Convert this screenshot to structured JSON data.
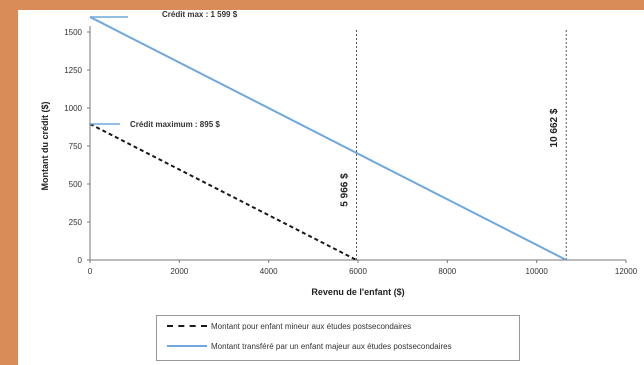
{
  "chart_data": {
    "type": "line",
    "xlabel": "Revenu de l'enfant ($)",
    "ylabel": "Montant du crédit ($)",
    "xlim": [
      0,
      12000
    ],
    "ylim": [
      0,
      1500
    ],
    "xticks": [
      0,
      2000,
      4000,
      6000,
      8000,
      10000,
      12000
    ],
    "yticks": [
      0,
      250,
      500,
      750,
      1000,
      1250,
      1500
    ],
    "series": [
      {
        "name": "Montant pour enfant mineur aux études postsecondaires",
        "x": [
          0,
          5966
        ],
        "y": [
          895,
          0
        ],
        "style": "dashed",
        "color": "#1a1a1a"
      },
      {
        "name": "Montant transféré par un enfant majeur aux études postsecondaires",
        "x": [
          0,
          10662
        ],
        "y": [
          1599,
          0
        ],
        "style": "solid",
        "color": "#6fa8dc"
      }
    ],
    "vlines": [
      {
        "x": 5966,
        "label": "5 966 $"
      },
      {
        "x": 10662,
        "label": "10 662 $"
      }
    ],
    "annotations": [
      {
        "text": "Crédit max : 1 599 $",
        "y": 1599
      },
      {
        "text": "Crédit maximum : 895 $",
        "y": 895
      }
    ],
    "legend_position": "bottom",
    "grid": false
  }
}
